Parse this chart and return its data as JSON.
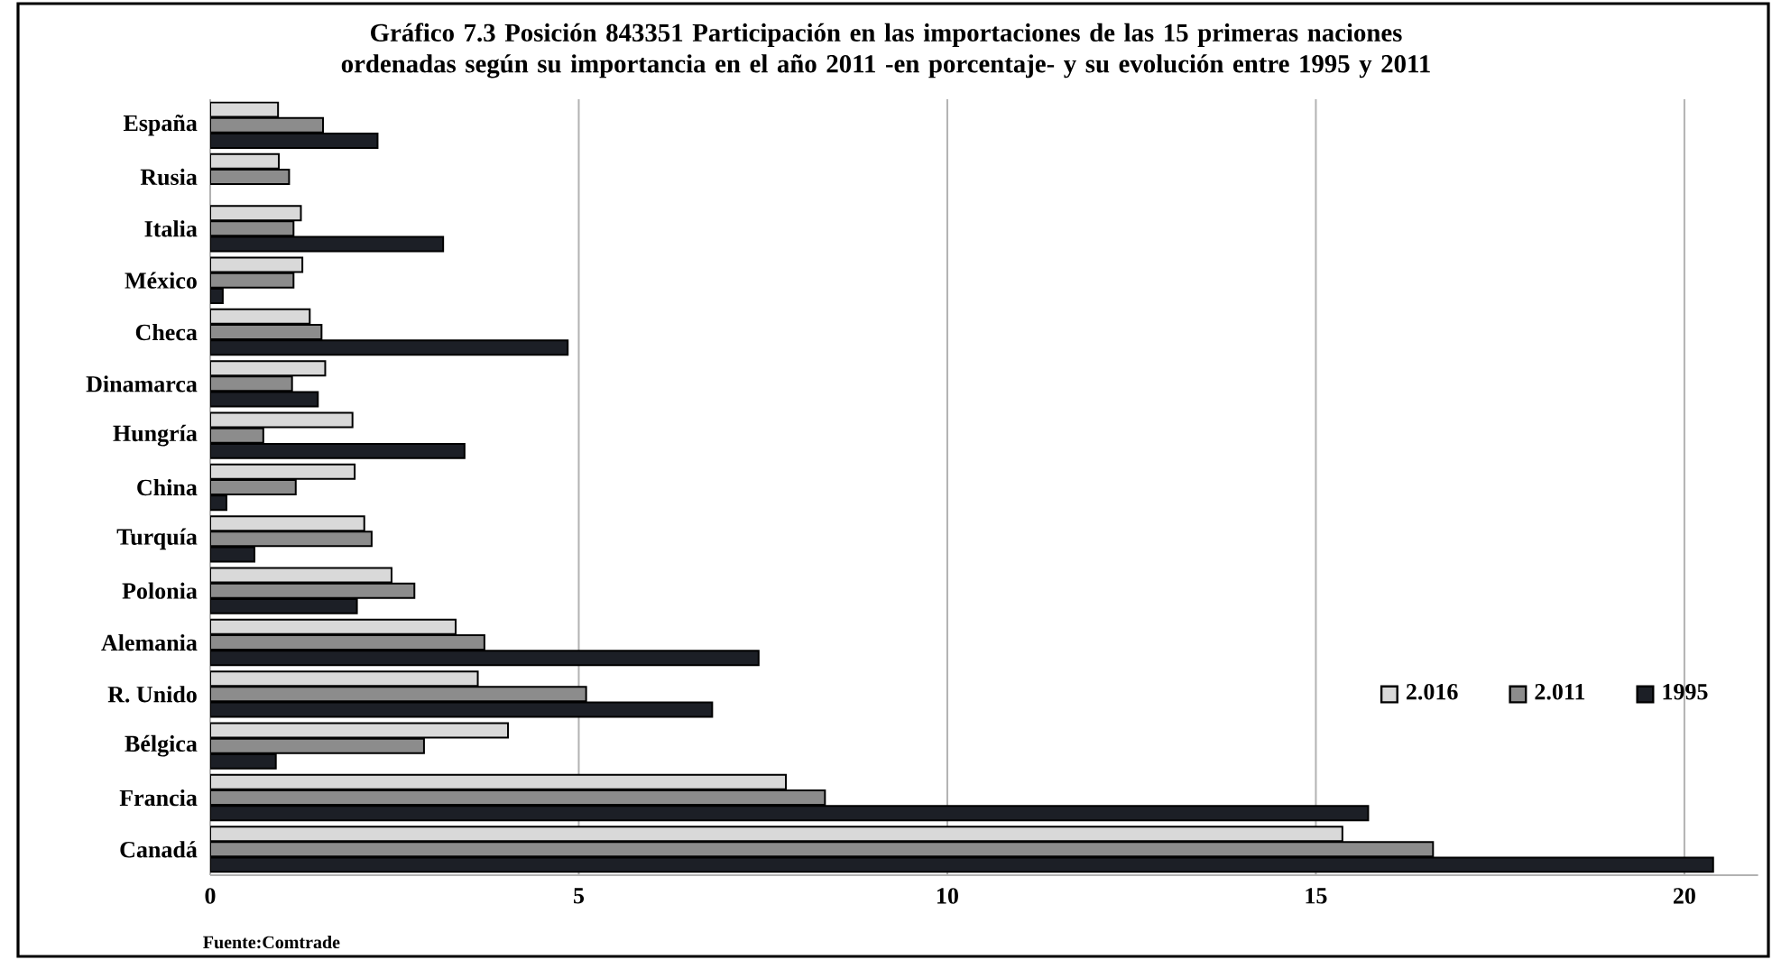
{
  "chart_data": {
    "type": "bar",
    "orientation": "horizontal",
    "title": "Gráfico 7.3 Posición 843351 Participación en las importaciones de las 15 primeras naciones ordenadas según su importancia en el año 2011 -en porcentaje- y su evolución entre 1995 y 2011",
    "categories": [
      "España",
      "Rusia",
      "Italia",
      "México",
      "Checa",
      "Dinamarca",
      "Hungría",
      "China",
      "Turquía",
      "Polonia",
      "Alemania",
      "R. Unido",
      "Bélgica",
      "Francia",
      "Canadá"
    ],
    "series": [
      {
        "name": "2.016",
        "color": "#d9d9d9",
        "values": [
          0.92,
          0.93,
          1.23,
          1.25,
          1.35,
          1.56,
          1.93,
          1.96,
          2.09,
          2.46,
          3.33,
          3.63,
          4.04,
          7.81,
          15.36
        ]
      },
      {
        "name": "2.011",
        "color": "#8c8c8c",
        "values": [
          1.53,
          1.07,
          1.13,
          1.13,
          1.51,
          1.11,
          0.72,
          1.16,
          2.19,
          2.77,
          3.72,
          5.1,
          2.9,
          8.34,
          16.59
        ]
      },
      {
        "name": "1995",
        "color": "#1c1f26",
        "values": [
          2.27,
          null,
          3.16,
          0.17,
          4.85,
          1.46,
          3.45,
          0.22,
          0.6,
          1.99,
          7.44,
          6.81,
          0.89,
          15.71,
          20.39
        ]
      }
    ],
    "xlim": [
      0,
      21
    ],
    "xticks": [
      0,
      5,
      10,
      15,
      20
    ],
    "grid": "x",
    "legend": "bottom right",
    "annotations": [
      "Fuente:Comtrade"
    ]
  }
}
